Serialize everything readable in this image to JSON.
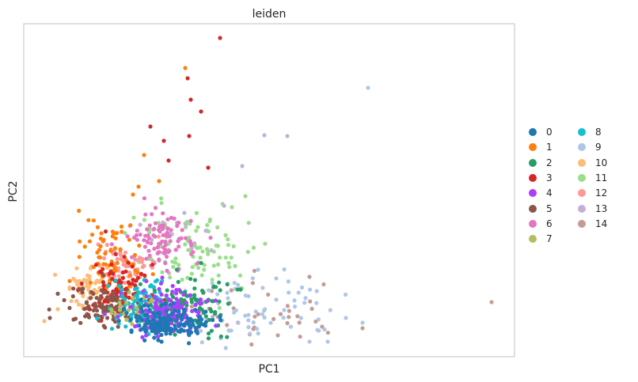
{
  "chart_data": {
    "type": "scatter",
    "title": "leiden",
    "xlabel": "PC1",
    "ylabel": "PC2",
    "grid": false,
    "legend_placement": "right",
    "series": [
      {
        "name": "0",
        "color": "#1f77b4"
      },
      {
        "name": "1",
        "color": "#ff7f0e"
      },
      {
        "name": "2",
        "color": "#279e68"
      },
      {
        "name": "3",
        "color": "#d62728"
      },
      {
        "name": "4",
        "color": "#aa40fc"
      },
      {
        "name": "5",
        "color": "#8c564b"
      },
      {
        "name": "6",
        "color": "#e377c2"
      },
      {
        "name": "7",
        "color": "#b5bd61"
      },
      {
        "name": "8",
        "color": "#17becf"
      },
      {
        "name": "9",
        "color": "#aec7e8"
      },
      {
        "name": "10",
        "color": "#ffbb78"
      },
      {
        "name": "11",
        "color": "#98df8a"
      },
      {
        "name": "12",
        "color": "#ff9896"
      },
      {
        "name": "13",
        "color": "#c5b0d5"
      },
      {
        "name": "14",
        "color": "#c49c94"
      }
    ]
  }
}
